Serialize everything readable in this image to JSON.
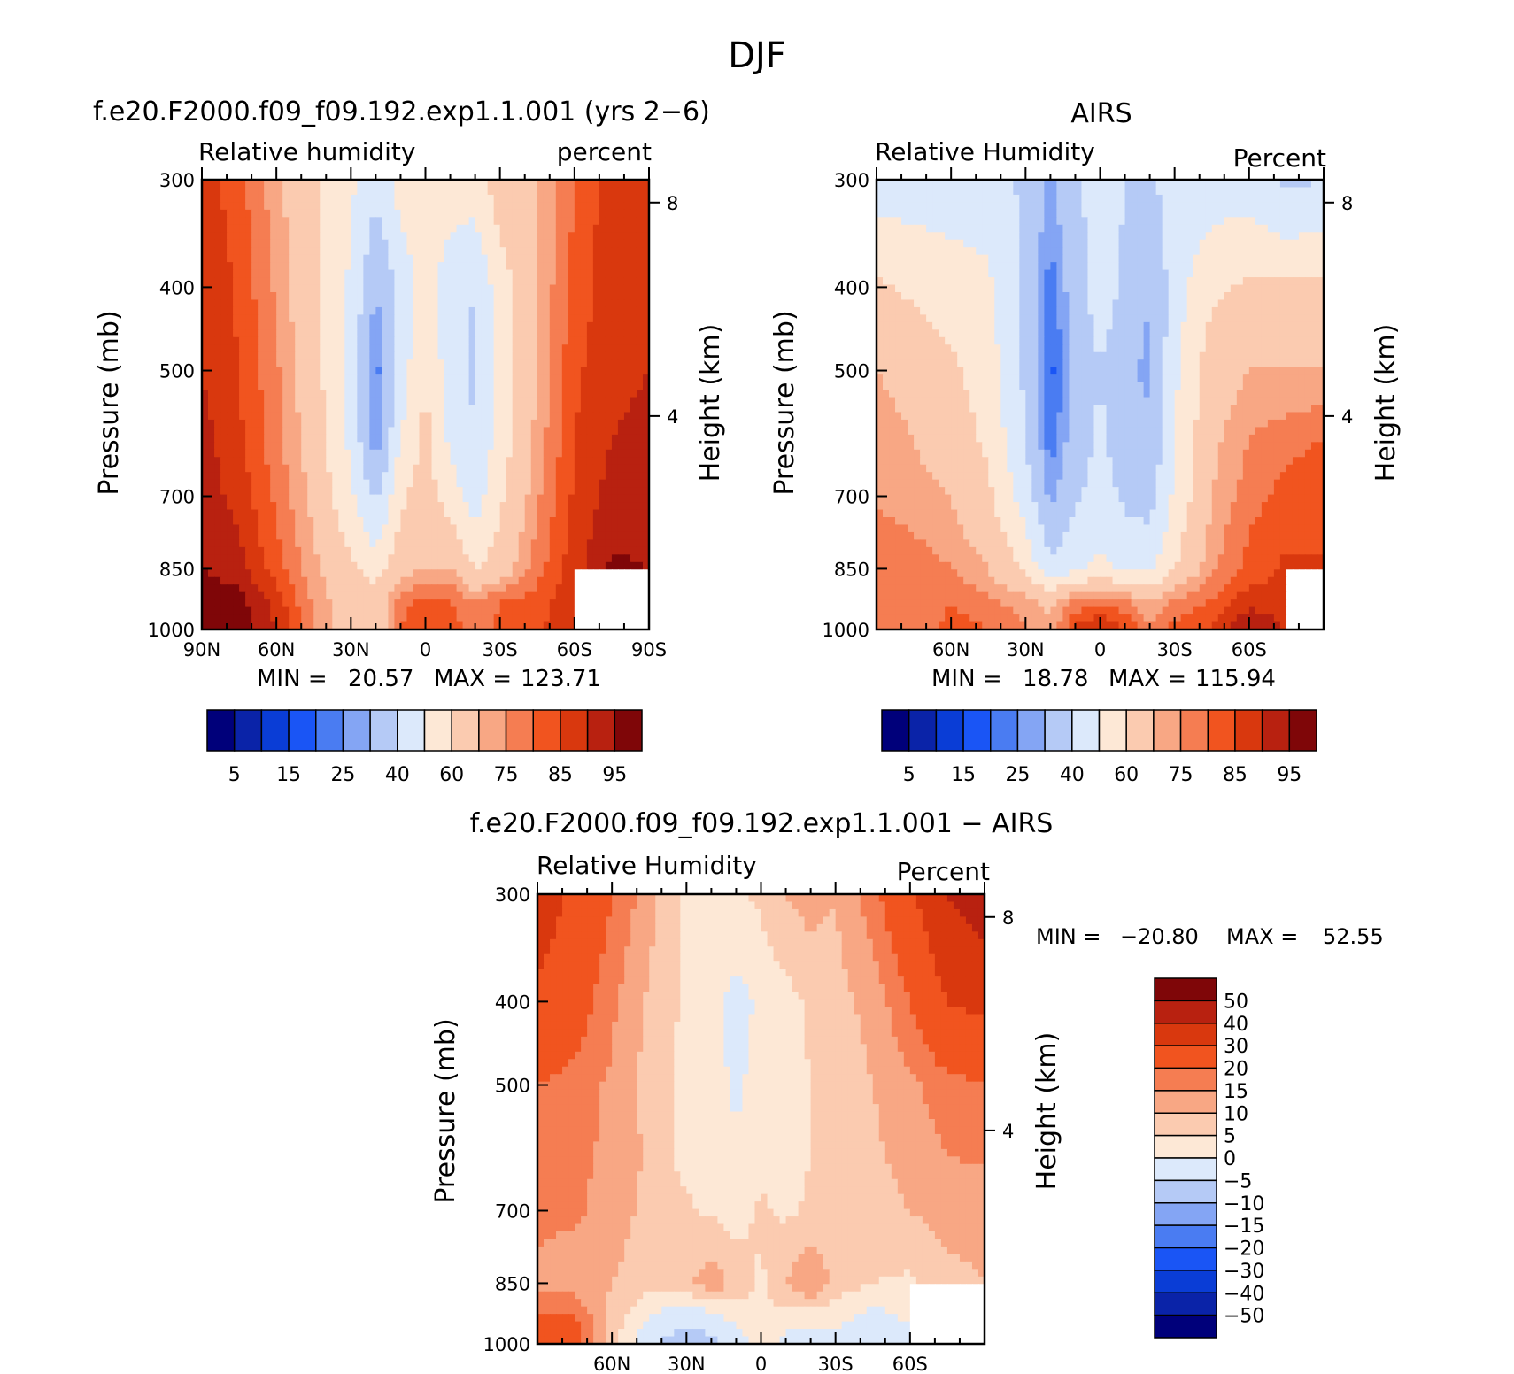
{
  "figure_title": "DJF",
  "colors": {
    "rh_palette": [
      "#00007a",
      "#0a23a8",
      "#0a3dd6",
      "#1a55f5",
      "#4a7cf2",
      "#84a5f4",
      "#b5caf6",
      "#dce9fb",
      "#fde8d6",
      "#fbcbb0",
      "#f8a784",
      "#f57d52",
      "#f1541f",
      "#d9380e",
      "#b82110",
      "#7f0608"
    ],
    "diff_palette": [
      "#00007a",
      "#0a23a8",
      "#0a3dd6",
      "#1a55f5",
      "#4a7cf2",
      "#84a5f4",
      "#b5caf6",
      "#dce9fb",
      "#fde8d6",
      "#fbcbb0",
      "#f8a784",
      "#f57d52",
      "#f1541f",
      "#d9380e",
      "#b82110",
      "#7f0608"
    ],
    "missing": "#ffffff"
  },
  "chart_data": [
    {
      "type": "heatmap",
      "id": "model",
      "title": "f.e20.F2000.f09_f09.192.exp1.1.001 (yrs 2−6)",
      "left_label": "Relative humidity",
      "right_label": "percent",
      "ylabel": "Pressure (mb)",
      "ylabel_right": "Height (km)",
      "pressure_ticks": [
        "300",
        "400",
        "500",
        "700",
        "850",
        "1000"
      ],
      "pressure_values": [
        300,
        400,
        500,
        700,
        850,
        1000
      ],
      "height_ticks": [
        "8",
        "4"
      ],
      "height_values": [
        8,
        4
      ],
      "lat_ticks": [
        "90N",
        "60N",
        "30N",
        "0",
        "30S",
        "60S",
        "90S"
      ],
      "lat_values": [
        90,
        60,
        30,
        0,
        -30,
        -60,
        -90
      ],
      "xlim": [
        90,
        -90
      ],
      "ylim": [
        300,
        1000
      ],
      "min_label": "MIN =",
      "min_value": "20.57",
      "max_label": "MAX =",
      "max_value": "123.71",
      "colorbar_levels": [
        "5",
        "15",
        "25",
        "40",
        "60",
        "75",
        "85",
        "95"
      ],
      "levels": [
        5,
        10,
        15,
        20,
        25,
        30,
        40,
        50,
        60,
        70,
        75,
        80,
        85,
        90,
        95
      ],
      "lat": [
        90,
        75,
        60,
        45,
        30,
        20,
        10,
        0,
        -10,
        -20,
        -30,
        -45,
        -60,
        -75,
        -90
      ],
      "lev": [
        300,
        400,
        500,
        600,
        700,
        850,
        925,
        1000
      ],
      "values": [
        [
          88,
          82,
          72,
          62,
          52,
          42,
          55,
          60,
          57,
          55,
          65,
          70,
          80,
          88,
          90
        ],
        [
          90,
          84,
          74,
          63,
          48,
          30,
          42,
          55,
          42,
          40,
          55,
          70,
          82,
          88,
          90
        ],
        [
          90,
          85,
          76,
          64,
          46,
          22,
          45,
          60,
          45,
          38,
          55,
          70,
          84,
          88,
          90
        ],
        [
          92,
          86,
          77,
          66,
          48,
          25,
          50,
          63,
          48,
          40,
          55,
          72,
          85,
          90,
          92
        ],
        [
          93,
          88,
          79,
          68,
          52,
          38,
          58,
          65,
          55,
          45,
          58,
          74,
          86,
          92,
          93
        ],
        [
          95,
          92,
          82,
          72,
          62,
          55,
          66,
          70,
          70,
          60,
          65,
          78,
          88,
          96,
          95
        ],
        [
          98,
          97,
          88,
          74,
          65,
          65,
          78,
          82,
          80,
          75,
          80,
          82,
          90,
          null,
          null
        ],
        [
          99,
          98,
          90,
          74,
          65,
          64,
          80,
          85,
          84,
          75,
          82,
          84,
          90,
          null,
          null
        ]
      ]
    },
    {
      "type": "heatmap",
      "id": "obs",
      "title": "AIRS",
      "left_label": "Relative Humidity",
      "right_label": "Percent",
      "ylabel": "Pressure (mb)",
      "ylabel_right": "Height (km)",
      "pressure_ticks": [
        "300",
        "400",
        "500",
        "700",
        "850",
        "1000"
      ],
      "pressure_values": [
        300,
        400,
        500,
        700,
        850,
        1000
      ],
      "height_ticks": [
        "8",
        "4"
      ],
      "height_values": [
        8,
        4
      ],
      "lat_ticks": [
        "60N",
        "30N",
        "0",
        "30S",
        "60S"
      ],
      "lat_values": [
        60,
        30,
        0,
        -30,
        -60
      ],
      "xlim": [
        90,
        -90
      ],
      "ylim": [
        300,
        1000
      ],
      "min_label": "MIN =",
      "min_value": "18.78",
      "max_label": "MAX =",
      "max_value": "115.94",
      "colorbar_levels": [
        "5",
        "15",
        "25",
        "40",
        "60",
        "75",
        "85",
        "95"
      ],
      "levels": [
        5,
        10,
        15,
        20,
        25,
        30,
        40,
        50,
        60,
        70,
        75,
        80,
        85,
        90,
        95
      ],
      "lat": [
        90,
        75,
        60,
        45,
        30,
        20,
        10,
        0,
        -10,
        -20,
        -30,
        -45,
        -60,
        -75,
        -90
      ],
      "lev": [
        300,
        400,
        500,
        600,
        700,
        850,
        925,
        1000
      ],
      "values": [
        [
          45,
          45,
          45,
          45,
          38,
          28,
          38,
          45,
          40,
          38,
          45,
          45,
          45,
          38,
          40
        ],
        [
          62,
          58,
          55,
          52,
          38,
          22,
          35,
          45,
          38,
          30,
          45,
          58,
          62,
          62,
          62
        ],
        [
          70,
          68,
          62,
          55,
          38,
          18,
          32,
          40,
          32,
          28,
          48,
          66,
          70,
          70,
          70
        ],
        [
          72,
          70,
          66,
          58,
          40,
          22,
          34,
          42,
          34,
          32,
          50,
          68,
          75,
          78,
          80
        ],
        [
          74,
          72,
          70,
          62,
          45,
          28,
          38,
          45,
          38,
          36,
          52,
          70,
          78,
          82,
          85
        ],
        [
          80,
          78,
          75,
          70,
          58,
          42,
          48,
          52,
          48,
          48,
          60,
          74,
          82,
          86,
          85
        ],
        [
          78,
          76,
          80,
          76,
          72,
          68,
          76,
          78,
          75,
          70,
          76,
          80,
          88,
          86,
          null
        ],
        [
          78,
          76,
          82,
          80,
          76,
          72,
          86,
          92,
          85,
          75,
          82,
          86,
          95,
          90,
          null
        ]
      ]
    },
    {
      "type": "heatmap",
      "id": "diff",
      "title": "f.e20.F2000.f09_f09.192.exp1.1.001 − AIRS",
      "left_label": "Relative Humidity",
      "right_label": "Percent",
      "ylabel": "Pressure (mb)",
      "ylabel_right": "Height (km)",
      "pressure_ticks": [
        "300",
        "400",
        "500",
        "700",
        "850",
        "1000"
      ],
      "pressure_values": [
        300,
        400,
        500,
        700,
        850,
        1000
      ],
      "height_ticks": [
        "8",
        "4"
      ],
      "height_values": [
        8,
        4
      ],
      "lat_ticks": [
        "60N",
        "30N",
        "0",
        "30S",
        "60S"
      ],
      "lat_values": [
        60,
        30,
        0,
        -30,
        -60
      ],
      "xlim": [
        90,
        -90
      ],
      "ylim": [
        300,
        1000
      ],
      "min_label": "MIN =",
      "min_value": "−20.80",
      "max_label": "MAX =",
      "max_value": "52.55",
      "colorbar_levels": [
        "50",
        "40",
        "30",
        "20",
        "15",
        "10",
        "5",
        "0",
        "−5",
        "−10",
        "−15",
        "−20",
        "−30",
        "−40",
        "−50"
      ],
      "levels": [
        -50,
        -40,
        -30,
        -20,
        -15,
        -10,
        -5,
        0,
        5,
        10,
        15,
        20,
        30,
        40,
        50
      ],
      "lat": [
        90,
        75,
        60,
        45,
        30,
        20,
        10,
        0,
        -10,
        -20,
        -30,
        -45,
        -60,
        -75,
        -90
      ],
      "lev": [
        300,
        400,
        500,
        600,
        700,
        850,
        925,
        1000
      ],
      "values": [
        [
          35,
          28,
          20,
          12,
          4,
          3,
          4,
          6,
          10,
          12,
          10,
          18,
          28,
          40,
          45
        ],
        [
          28,
          24,
          16,
          9,
          4,
          2,
          -2,
          1,
          3,
          6,
          8,
          12,
          20,
          30,
          32
        ],
        [
          20,
          18,
          14,
          8,
          3,
          2,
          -1,
          2,
          2,
          5,
          6,
          10,
          14,
          18,
          20
        ],
        [
          18,
          16,
          14,
          9,
          3,
          2,
          1,
          3,
          2,
          5,
          6,
          9,
          12,
          15,
          16
        ],
        [
          16,
          16,
          13,
          8,
          6,
          4,
          3,
          6,
          4,
          6,
          7,
          8,
          10,
          12,
          12
        ],
        [
          14,
          12,
          10,
          6,
          8,
          14,
          8,
          4,
          10,
          16,
          8,
          5,
          4,
          8,
          10
        ],
        [
          20,
          20,
          8,
          0,
          -3,
          -2,
          2,
          4,
          3,
          2,
          2,
          -2,
          2,
          null,
          null
        ],
        [
          25,
          25,
          6,
          -4,
          -8,
          -6,
          -3,
          2,
          -2,
          -4,
          -1,
          -5,
          -6,
          null,
          null
        ]
      ]
    }
  ]
}
